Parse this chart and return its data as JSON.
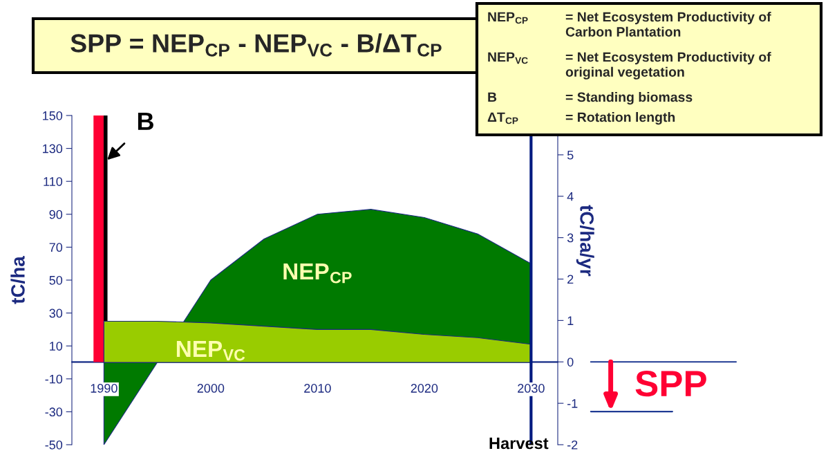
{
  "chart_data": {
    "type": "area",
    "title": "SPP = NEP$_{CP}$ - NEP$_{VC}$ - B/ΔT$_{CP}$",
    "ylabel": "tC/ha",
    "y2label": "tC/ha/yr",
    "x": [
      1990,
      1995,
      2000,
      2005,
      2010,
      2015,
      2020,
      2025,
      2030
    ],
    "series": [
      {
        "name": "NEP$_{CP}$",
        "color": "#007a00",
        "values": [
          -50,
          0,
          50,
          75,
          90,
          93,
          88,
          78,
          60
        ]
      },
      {
        "name": "NEP$_{VC}$",
        "color": "#99cc00",
        "values": [
          25,
          25,
          24,
          22,
          20,
          20,
          17,
          15,
          11
        ]
      },
      {
        "name": "B",
        "type": "bar",
        "x": [
          1989.5
        ],
        "values": [
          150
        ],
        "color": "#ff0033"
      }
    ],
    "xlim": [
      1987,
      2032.5
    ],
    "xticks": [
      1990,
      2000,
      2010,
      2020,
      2030
    ],
    "ylim": [
      -50,
      150
    ],
    "yticks": [
      -50,
      -30,
      -10,
      10,
      30,
      50,
      70,
      90,
      110,
      130,
      150
    ],
    "y2lim": [
      -2,
      5.95
    ],
    "y2ticks": [
      -2,
      -1,
      0,
      1,
      2,
      3,
      4,
      5
    ],
    "ref_lines": [
      {
        "axis": "x",
        "value": 2030,
        "label": "Harvest",
        "color": "#001a80"
      },
      {
        "axis": "y2",
        "value": 0,
        "color": "#1f3a93"
      },
      {
        "axis": "y2",
        "value": -1.2,
        "label": "SPP",
        "color": "#1f3a93"
      }
    ],
    "annotations": [
      "NEP$_{CP}$",
      "= Net Ecosystem Productivity of\nCarbon Plantation",
      "NEP$_{VC}$",
      "= Net Ecosystem Productivity of\noriginal vegetation",
      "B",
      "= Standing biomass",
      "ΔT$_{CP}$",
      "= Rotation length"
    ]
  }
}
